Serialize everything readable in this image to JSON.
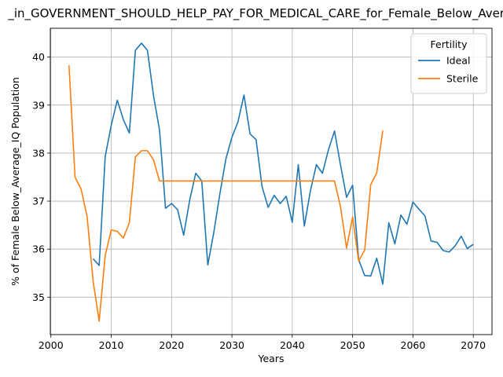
{
  "chart_data": {
    "type": "line",
    "title": "_in_GOVERNMENT_SHOULD_HELP_PAY_FOR_MEDICAL_CARE_for_Female_Below_Average_IQ",
    "xlabel": "Years",
    "ylabel": "% of Female Below_Average_IQ Population",
    "xlim": [
      1999.9,
      2073.1
    ],
    "ylim": [
      34.22,
      40.6
    ],
    "xticks": [
      2000,
      2010,
      2020,
      2030,
      2040,
      2050,
      2060,
      2070
    ],
    "yticks": [
      35,
      36,
      37,
      38,
      39,
      40
    ],
    "grid": true,
    "legend": {
      "title": "Fertility",
      "placement": "top-right"
    },
    "colors": {
      "Ideal": "#1f77b4",
      "Sterile": "#ff7f0e"
    },
    "series": [
      {
        "name": "Ideal",
        "x": [
          2007,
          2008,
          2009,
          2010,
          2011,
          2012,
          2013,
          2014,
          2015,
          2016,
          2017,
          2018,
          2019,
          2020,
          2021,
          2022,
          2023,
          2024,
          2025,
          2026,
          2027,
          2028,
          2029,
          2030,
          2031,
          2032,
          2033,
          2034,
          2035,
          2036,
          2037,
          2038,
          2039,
          2040,
          2041,
          2042,
          2043,
          2044,
          2045,
          2046,
          2047,
          2048,
          2049,
          2050,
          2051,
          2052,
          2053,
          2054,
          2055,
          2056,
          2057,
          2058,
          2059,
          2060,
          2061,
          2062,
          2063,
          2064,
          2065,
          2066,
          2067,
          2068,
          2069,
          2070
        ],
        "y": [
          35.8,
          35.66,
          37.93,
          38.58,
          39.1,
          38.7,
          38.42,
          40.14,
          40.29,
          40.14,
          39.2,
          38.48,
          36.85,
          36.95,
          36.82,
          36.29,
          37.02,
          37.58,
          37.42,
          35.67,
          36.35,
          37.15,
          37.88,
          38.33,
          38.65,
          39.21,
          38.4,
          38.28,
          37.3,
          36.87,
          37.12,
          36.95,
          37.1,
          36.56,
          37.76,
          36.48,
          37.21,
          37.76,
          37.58,
          38.07,
          38.46,
          37.75,
          37.08,
          37.33,
          35.78,
          35.45,
          35.44,
          35.81,
          35.27,
          36.55,
          36.11,
          36.71,
          36.52,
          36.98,
          36.83,
          36.69,
          36.17,
          36.14,
          35.97,
          35.94,
          36.07,
          36.27,
          36.01,
          36.1
        ]
      },
      {
        "name": "Sterile",
        "x": [
          2003,
          2004,
          2005,
          2006,
          2007,
          2008,
          2009,
          2010,
          2011,
          2012,
          2013,
          2014,
          2015,
          2016,
          2017,
          2018,
          2019,
          2020,
          2021,
          2022,
          2023,
          2024,
          2025,
          2026,
          2027,
          2028,
          2029,
          2030,
          2031,
          2032,
          2033,
          2034,
          2035,
          2036,
          2037,
          2038,
          2039,
          2040,
          2041,
          2042,
          2043,
          2044,
          2045,
          2046,
          2047,
          2048,
          2049,
          2050,
          2051,
          2052,
          2053,
          2054,
          2055
        ],
        "y": [
          39.83,
          37.5,
          37.25,
          36.68,
          35.33,
          34.5,
          35.87,
          36.4,
          36.37,
          36.23,
          36.55,
          37.92,
          38.05,
          38.05,
          37.86,
          37.42,
          37.42,
          37.42,
          37.42,
          37.42,
          37.42,
          37.42,
          37.42,
          37.42,
          37.42,
          37.42,
          37.42,
          37.42,
          37.42,
          37.42,
          37.42,
          37.42,
          37.42,
          37.42,
          37.42,
          37.42,
          37.42,
          37.42,
          37.42,
          37.42,
          37.42,
          37.42,
          37.42,
          37.42,
          37.42,
          36.88,
          36.02,
          36.67,
          35.75,
          35.98,
          37.34,
          37.59,
          38.47
        ]
      }
    ]
  }
}
